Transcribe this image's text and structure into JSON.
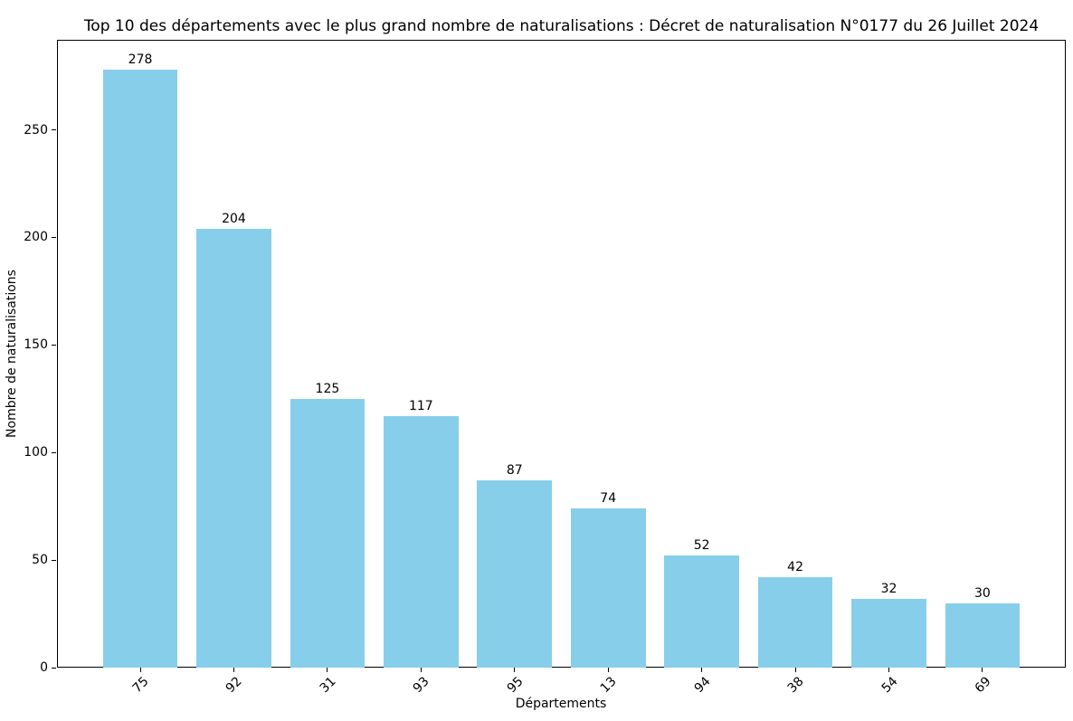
{
  "chart_data": {
    "type": "bar",
    "title": "Top 10 des départements avec le plus grand nombre de naturalisations : Décret de naturalisation N°0177 du 26 Juillet 2024",
    "xlabel": "Départements",
    "ylabel": "Nombre de naturalisations",
    "categories": [
      "75",
      "92",
      "31",
      "93",
      "95",
      "13",
      "94",
      "38",
      "54",
      "69"
    ],
    "values": [
      278,
      204,
      125,
      117,
      87,
      74,
      52,
      42,
      32,
      30
    ],
    "bar_color": "#87CEEB",
    "ylim": [
      0,
      291.9
    ],
    "yticks": [
      0,
      50,
      100,
      150,
      200,
      250
    ],
    "xtick_rotation": 45,
    "bar_width_fraction": 0.8,
    "grid": false,
    "bar_labels": true,
    "legend": "none",
    "background_color": "#ffffff",
    "text_color": "#000000"
  }
}
